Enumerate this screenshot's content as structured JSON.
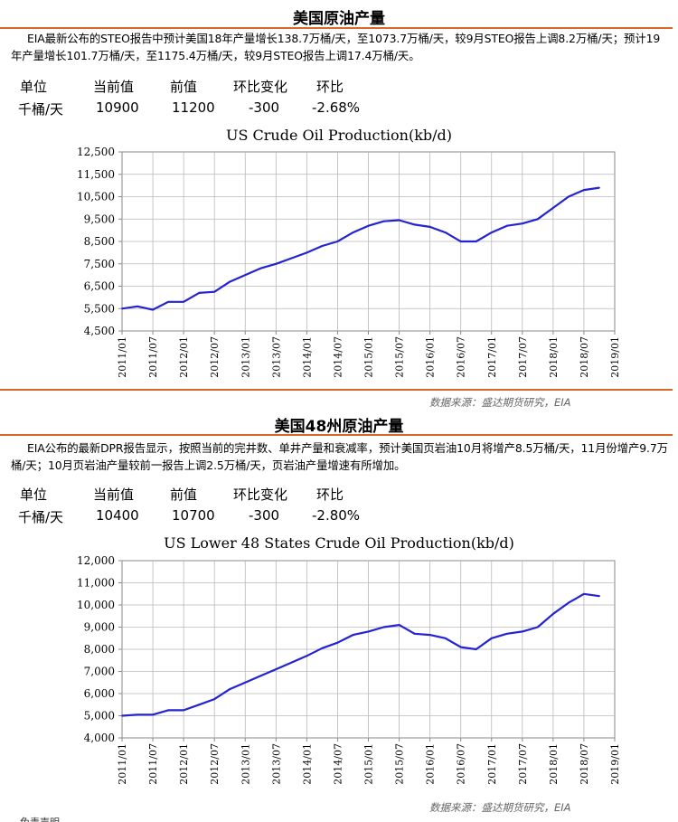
{
  "section1": {
    "heading": "美国原油产量",
    "paragraph": "EIA最新公布的STEO报告中预计美国18年产量增长138.7万桶/天，至1073.7万桶/天，较9月STEO报告上调8.2万桶/天；预计19年产量增长101.7万桶/天，至1175.4万桶/天，较9月STEO报告上调17.4万桶/天。",
    "table": {
      "headers": [
        "单位",
        "当前值",
        "前值",
        "环比变化",
        "环比"
      ],
      "values": [
        "千桶/天",
        "10900",
        "11200",
        "-300",
        "-2.68%"
      ]
    },
    "source": "数据来源：盛达期货研究，EIA"
  },
  "section2": {
    "heading": "美国48州原油产量",
    "paragraph": "EIA公布的最新DPR报告显示，按照当前的完井数、单井产量和衰减率，预计美国页岩油10月将增产8.5万桶/天，11月份增产9.7万桶/天；10月页岩油产量较前一报告上调2.5万桶/天，页岩油产量增速有所增加。",
    "table": {
      "headers": [
        "单位",
        "当前值",
        "前值",
        "环比变化",
        "环比"
      ],
      "values": [
        "千桶/天",
        "10400",
        "10700",
        "-300",
        "-2.80%"
      ]
    },
    "source": "数据来源：盛达期货研究，EIA"
  },
  "footer_fragment": "免责声明",
  "chart_data": [
    {
      "type": "line",
      "title": "US Crude Oil Production(kb/d)",
      "ylim": [
        4500,
        12500
      ],
      "yticks": [
        "4,500",
        "5,500",
        "6,500",
        "7,500",
        "8,500",
        "9,500",
        "10,500",
        "11,500",
        "12,500"
      ],
      "xticks": [
        "2011/01",
        "2011/07",
        "2012/01",
        "2012/07",
        "2013/01",
        "2013/07",
        "2014/01",
        "2014/07",
        "2015/01",
        "2015/07",
        "2016/01",
        "2016/07",
        "2017/01",
        "2017/07",
        "2018/01",
        "2018/07",
        "2019/01"
      ],
      "grid": true,
      "color": "#2323d2",
      "series": [
        {
          "x": [
            "2011/01",
            "2011/04",
            "2011/07",
            "2011/10",
            "2012/01",
            "2012/04",
            "2012/07",
            "2012/10",
            "2013/01",
            "2013/04",
            "2013/07",
            "2013/10",
            "2014/01",
            "2014/04",
            "2014/07",
            "2014/10",
            "2015/01",
            "2015/04",
            "2015/07",
            "2015/10",
            "2016/01",
            "2016/04",
            "2016/07",
            "2016/10",
            "2017/01",
            "2017/04",
            "2017/07",
            "2017/10",
            "2018/01",
            "2018/04",
            "2018/07",
            "2018/10"
          ],
          "values": [
            5500,
            5600,
            5450,
            5800,
            5800,
            6200,
            6250,
            6700,
            7000,
            7300,
            7500,
            7750,
            8000,
            8300,
            8500,
            8900,
            9200,
            9400,
            9450,
            9250,
            9150,
            8900,
            8500,
            8500,
            8900,
            9200,
            9300,
            9500,
            10000,
            10500,
            10800,
            10900
          ]
        }
      ]
    },
    {
      "type": "line",
      "title": "US Lower 48 States Crude Oil Production(kb/d)",
      "ylim": [
        4000,
        12000
      ],
      "yticks": [
        "4,000",
        "5,000",
        "6,000",
        "7,000",
        "8,000",
        "9,000",
        "10,000",
        "11,000",
        "12,000"
      ],
      "xticks": [
        "2011/01",
        "2011/07",
        "2012/01",
        "2012/07",
        "2013/01",
        "2013/07",
        "2014/01",
        "2014/07",
        "2015/01",
        "2015/07",
        "2016/01",
        "2016/07",
        "2017/01",
        "2017/07",
        "2018/01",
        "2018/07",
        "2019/01"
      ],
      "grid": true,
      "color": "#2323d2",
      "series": [
        {
          "x": [
            "2011/01",
            "2011/04",
            "2011/07",
            "2011/10",
            "2012/01",
            "2012/04",
            "2012/07",
            "2012/10",
            "2013/01",
            "2013/04",
            "2013/07",
            "2013/10",
            "2014/01",
            "2014/04",
            "2014/07",
            "2014/10",
            "2015/01",
            "2015/04",
            "2015/07",
            "2015/10",
            "2016/01",
            "2016/04",
            "2016/07",
            "2016/10",
            "2017/01",
            "2017/04",
            "2017/07",
            "2017/10",
            "2018/01",
            "2018/04",
            "2018/07",
            "2018/10"
          ],
          "values": [
            5000,
            5050,
            5050,
            5250,
            5250,
            5500,
            5750,
            6200,
            6500,
            6800,
            7100,
            7400,
            7700,
            8050,
            8300,
            8650,
            8800,
            9000,
            9100,
            8700,
            8650,
            8500,
            8100,
            8000,
            8500,
            8700,
            8800,
            9000,
            9600,
            10100,
            10500,
            10400
          ]
        }
      ]
    }
  ]
}
